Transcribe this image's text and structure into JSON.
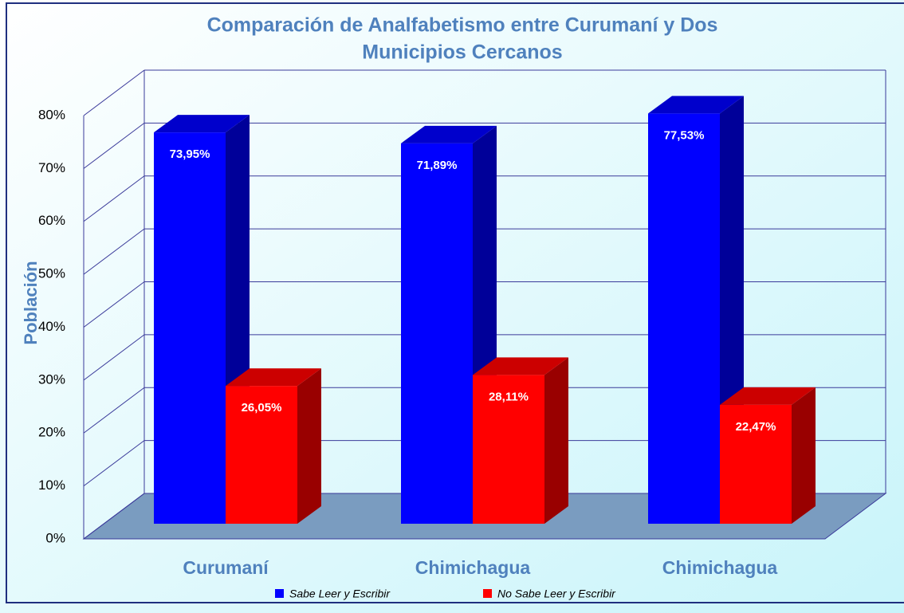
{
  "chart_data": {
    "type": "bar3d",
    "title": "Comparación de Analfabetismo entre Curumaní y Dos",
    "subtitle": "Municipios Cercanos",
    "y_label": "Población",
    "categories": [
      "Curumaní",
      "Chimichagua",
      "Chimichagua"
    ],
    "series": [
      {
        "name": "Sabe Leer y Escribir",
        "color": "#0000ff",
        "values": [
          73.95,
          71.89,
          77.53
        ],
        "value_labels": [
          "73,95%",
          "71,89%",
          "77,53%"
        ]
      },
      {
        "name": "No Sabe Leer y Escribir",
        "color": "#ff0000",
        "values": [
          26.05,
          28.11,
          22.47
        ],
        "value_labels": [
          "26,05%",
          "28,11%",
          "22,47%"
        ]
      }
    ],
    "ylim": [
      0,
      80
    ],
    "yticks": [
      {
        "value": 0,
        "label": "0%"
      },
      {
        "value": 10,
        "label": "10%"
      },
      {
        "value": 20,
        "label": "20%"
      },
      {
        "value": 30,
        "label": "30%"
      },
      {
        "value": 40,
        "label": "40%"
      },
      {
        "value": 50,
        "label": "50%"
      },
      {
        "value": 60,
        "label": "60%"
      },
      {
        "value": 70,
        "label": "70%"
      },
      {
        "value": 80,
        "label": "80%"
      }
    ],
    "grid": true,
    "legend": "bottom"
  }
}
